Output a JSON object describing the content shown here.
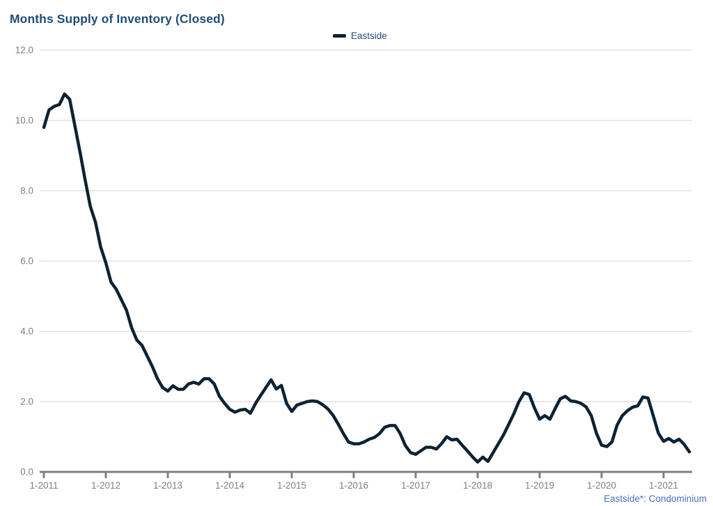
{
  "header": {
    "title": "Months Supply of Inventory (Closed)"
  },
  "legend": {
    "label": "Eastside"
  },
  "footnote": {
    "text": "Eastside*: Condominium"
  },
  "colors": {
    "title_text": "#1F4E79",
    "legend_text": "#1F4E79",
    "footnote_text": "#4472C4",
    "series_line": "#0D2233",
    "axis_label": "#7F7F7F",
    "axis_line": "#808080",
    "gridline": "#D9D9D9"
  },
  "chart_data": {
    "type": "line",
    "title": "Months Supply of Inventory (Closed)",
    "xlabel": "",
    "ylabel": "",
    "x_start": "1-2011",
    "x_frequency": "monthly",
    "x_tick_labels": [
      "1-2011",
      "1-2012",
      "1-2013",
      "1-2014",
      "1-2015",
      "1-2016",
      "1-2017",
      "1-2018",
      "1-2019",
      "1-2020",
      "1-2021"
    ],
    "y_tick_labels": [
      "0.0",
      "2.0",
      "4.0",
      "6.0",
      "8.0",
      "10.0",
      "12.0"
    ],
    "y_tick_values": [
      0,
      2,
      4,
      6,
      8,
      10,
      12
    ],
    "ylim": [
      0,
      12
    ],
    "grid": "horizontal",
    "legend_position": "top-center",
    "series": [
      {
        "name": "Eastside",
        "values": [
          9.8,
          10.3,
          10.4,
          10.45,
          10.75,
          10.6,
          9.85,
          9.1,
          8.3,
          7.55,
          7.1,
          6.4,
          5.95,
          5.4,
          5.2,
          4.9,
          4.6,
          4.1,
          3.75,
          3.6,
          3.3,
          3.0,
          2.65,
          2.4,
          2.3,
          2.45,
          2.35,
          2.35,
          2.5,
          2.55,
          2.5,
          2.65,
          2.65,
          2.5,
          2.15,
          1.95,
          1.78,
          1.7,
          1.76,
          1.78,
          1.67,
          1.95,
          2.18,
          2.4,
          2.62,
          2.36,
          2.46,
          1.95,
          1.72,
          1.9,
          1.95,
          2.0,
          2.02,
          2.0,
          1.91,
          1.79,
          1.61,
          1.36,
          1.09,
          0.85,
          0.8,
          0.8,
          0.85,
          0.93,
          0.98,
          1.09,
          1.27,
          1.32,
          1.32,
          1.09,
          0.75,
          0.55,
          0.5,
          0.6,
          0.7,
          0.7,
          0.65,
          0.8,
          1.0,
          0.91,
          0.93,
          0.76,
          0.6,
          0.43,
          0.28,
          0.42,
          0.3,
          0.55,
          0.8,
          1.05,
          1.35,
          1.65,
          2.0,
          2.25,
          2.2,
          1.82,
          1.5,
          1.6,
          1.5,
          1.8,
          2.08,
          2.15,
          2.02,
          2.0,
          1.95,
          1.85,
          1.6,
          1.1,
          0.76,
          0.72,
          0.85,
          1.33,
          1.6,
          1.74,
          1.84,
          1.88,
          2.13,
          2.1,
          1.6,
          1.1,
          0.87,
          0.95,
          0.85,
          0.93,
          0.78,
          0.57
        ]
      }
    ]
  }
}
